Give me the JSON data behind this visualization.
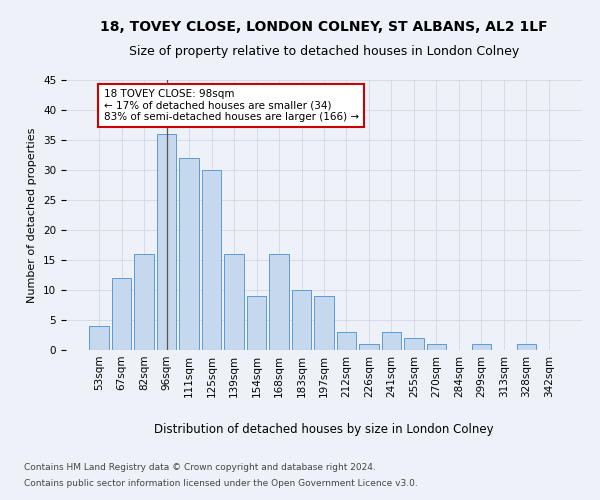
{
  "title": "18, TOVEY CLOSE, LONDON COLNEY, ST ALBANS, AL2 1LF",
  "subtitle": "Size of property relative to detached houses in London Colney",
  "xlabel": "Distribution of detached houses by size in London Colney",
  "ylabel": "Number of detached properties",
  "bar_labels": [
    "53sqm",
    "67sqm",
    "82sqm",
    "96sqm",
    "111sqm",
    "125sqm",
    "139sqm",
    "154sqm",
    "168sqm",
    "183sqm",
    "197sqm",
    "212sqm",
    "226sqm",
    "241sqm",
    "255sqm",
    "270sqm",
    "284sqm",
    "299sqm",
    "313sqm",
    "328sqm",
    "342sqm"
  ],
  "bar_values": [
    4,
    12,
    16,
    36,
    32,
    30,
    16,
    9,
    16,
    10,
    9,
    3,
    1,
    3,
    2,
    1,
    0,
    1,
    0,
    1,
    0
  ],
  "bar_color": "#c5d8ee",
  "bar_edge_color": "#5b9bd5",
  "highlight_index": 3,
  "highlight_line_color": "#555555",
  "annotation_line1": "18 TOVEY CLOSE: 98sqm",
  "annotation_line2": "← 17% of detached houses are smaller (34)",
  "annotation_line3": "83% of semi-detached houses are larger (166) →",
  "annotation_box_color": "#ffffff",
  "annotation_box_edge_color": "#cc0000",
  "ylim": [
    0,
    45
  ],
  "yticks": [
    0,
    5,
    10,
    15,
    20,
    25,
    30,
    35,
    40,
    45
  ],
  "grid_color": "#d0d8e8",
  "background_color": "#eef2f8",
  "footer_line1": "Contains HM Land Registry data © Crown copyright and database right 2024.",
  "footer_line2": "Contains public sector information licensed under the Open Government Licence v3.0.",
  "title_fontsize": 10,
  "subtitle_fontsize": 9,
  "xlabel_fontsize": 8.5,
  "ylabel_fontsize": 8,
  "tick_fontsize": 7.5,
  "annotation_fontsize": 7.5,
  "footer_fontsize": 6.5
}
